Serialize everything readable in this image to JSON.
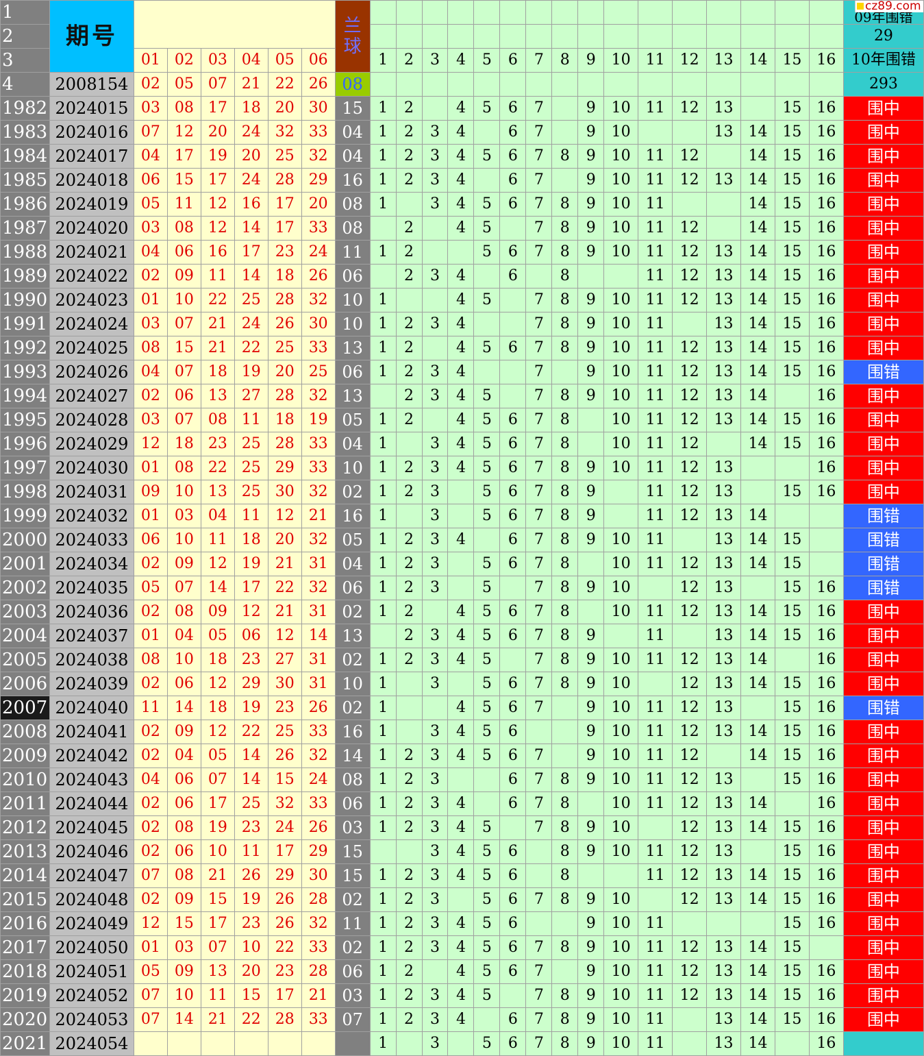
{
  "header": {
    "qihao_label": "期号",
    "lanqiu_label": "兰\n球",
    "header_row_numbers": [
      "1",
      "2",
      "3",
      "4"
    ],
    "red_ball_headers": [
      "01",
      "02",
      "03",
      "04",
      "05",
      "06"
    ],
    "column_numbers": [
      "1",
      "2",
      "3",
      "4",
      "5",
      "6",
      "7",
      "8",
      "9",
      "10",
      "11",
      "12",
      "13",
      "14",
      "15",
      "16"
    ],
    "stat_09_label": "09年围错",
    "stat_09_value": "29",
    "stat_10_label": "10年围错",
    "stat_10_value": "293",
    "sample_issue": "2008154",
    "sample_reds": [
      "02",
      "05",
      "07",
      "21",
      "22",
      "26"
    ],
    "sample_blue": "08"
  },
  "watermark": "cz89.com",
  "colors": {
    "hit": "#ff0000",
    "miss": "#3366ff",
    "grid_green": "#ccffcc",
    "issue_blue": "#00bfff"
  },
  "rows": [
    {
      "rn": "1982",
      "issue": "2024015",
      "reds": [
        "03",
        "08",
        "17",
        "18",
        "20",
        "30"
      ],
      "blue": "15",
      "cells": [
        "1",
        "2",
        "",
        "4",
        "5",
        "6",
        "7",
        "",
        "9",
        "10",
        "11",
        "12",
        "13",
        "",
        "15",
        "16"
      ],
      "result": "围中",
      "hit": true
    },
    {
      "rn": "1983",
      "issue": "2024016",
      "reds": [
        "07",
        "12",
        "20",
        "24",
        "32",
        "33"
      ],
      "blue": "04",
      "cells": [
        "1",
        "2",
        "3",
        "4",
        "",
        "6",
        "7",
        "",
        "9",
        "10",
        "",
        "",
        "13",
        "14",
        "15",
        "16"
      ],
      "result": "围中",
      "hit": true
    },
    {
      "rn": "1984",
      "issue": "2024017",
      "reds": [
        "04",
        "17",
        "19",
        "20",
        "25",
        "32"
      ],
      "blue": "04",
      "cells": [
        "1",
        "2",
        "3",
        "4",
        "5",
        "6",
        "7",
        "8",
        "9",
        "10",
        "11",
        "12",
        "",
        "14",
        "15",
        "16"
      ],
      "result": "围中",
      "hit": true
    },
    {
      "rn": "1985",
      "issue": "2024018",
      "reds": [
        "06",
        "15",
        "17",
        "24",
        "28",
        "29"
      ],
      "blue": "16",
      "cells": [
        "1",
        "2",
        "3",
        "4",
        "",
        "6",
        "7",
        "",
        "9",
        "10",
        "11",
        "12",
        "13",
        "14",
        "15",
        "16"
      ],
      "result": "围中",
      "hit": true
    },
    {
      "rn": "1986",
      "issue": "2024019",
      "reds": [
        "05",
        "11",
        "12",
        "16",
        "17",
        "20"
      ],
      "blue": "08",
      "cells": [
        "1",
        "",
        "3",
        "4",
        "5",
        "6",
        "7",
        "8",
        "9",
        "10",
        "11",
        "",
        "",
        "14",
        "15",
        "16"
      ],
      "result": "围中",
      "hit": true
    },
    {
      "rn": "1987",
      "issue": "2024020",
      "reds": [
        "03",
        "08",
        "12",
        "14",
        "17",
        "33"
      ],
      "blue": "08",
      "cells": [
        "",
        "2",
        "",
        "4",
        "5",
        "",
        "7",
        "8",
        "9",
        "10",
        "11",
        "12",
        "",
        "14",
        "15",
        "16"
      ],
      "result": "围中",
      "hit": true
    },
    {
      "rn": "1988",
      "issue": "2024021",
      "reds": [
        "04",
        "06",
        "16",
        "17",
        "23",
        "24"
      ],
      "blue": "11",
      "cells": [
        "1",
        "2",
        "",
        "",
        "5",
        "6",
        "7",
        "8",
        "9",
        "10",
        "11",
        "12",
        "13",
        "14",
        "15",
        "16"
      ],
      "result": "围中",
      "hit": true
    },
    {
      "rn": "1989",
      "issue": "2024022",
      "reds": [
        "02",
        "09",
        "11",
        "14",
        "18",
        "26"
      ],
      "blue": "06",
      "cells": [
        "",
        "2",
        "3",
        "4",
        "",
        "6",
        "",
        "8",
        "",
        "",
        "11",
        "12",
        "13",
        "14",
        "15",
        "16"
      ],
      "result": "围中",
      "hit": true
    },
    {
      "rn": "1990",
      "issue": "2024023",
      "reds": [
        "01",
        "10",
        "22",
        "25",
        "28",
        "32"
      ],
      "blue": "10",
      "cells": [
        "1",
        "",
        "",
        "4",
        "5",
        "",
        "7",
        "8",
        "9",
        "10",
        "11",
        "12",
        "13",
        "14",
        "15",
        "16"
      ],
      "result": "围中",
      "hit": true
    },
    {
      "rn": "1991",
      "issue": "2024024",
      "reds": [
        "03",
        "07",
        "21",
        "24",
        "26",
        "30"
      ],
      "blue": "10",
      "cells": [
        "1",
        "2",
        "3",
        "4",
        "",
        "",
        "7",
        "8",
        "9",
        "10",
        "11",
        "",
        "13",
        "14",
        "15",
        "16"
      ],
      "result": "围中",
      "hit": true
    },
    {
      "rn": "1992",
      "issue": "2024025",
      "reds": [
        "08",
        "15",
        "21",
        "22",
        "25",
        "33"
      ],
      "blue": "13",
      "cells": [
        "1",
        "2",
        "",
        "4",
        "5",
        "6",
        "7",
        "8",
        "9",
        "10",
        "11",
        "12",
        "13",
        "14",
        "15",
        "16"
      ],
      "result": "围中",
      "hit": true
    },
    {
      "rn": "1993",
      "issue": "2024026",
      "reds": [
        "04",
        "07",
        "18",
        "19",
        "20",
        "25"
      ],
      "blue": "06",
      "cells": [
        "1",
        "2",
        "3",
        "4",
        "",
        "",
        "7",
        "",
        "9",
        "10",
        "11",
        "12",
        "13",
        "14",
        "15",
        "16"
      ],
      "result": "围错",
      "hit": false
    },
    {
      "rn": "1994",
      "issue": "2024027",
      "reds": [
        "02",
        "06",
        "13",
        "27",
        "28",
        "32"
      ],
      "blue": "13",
      "cells": [
        "",
        "2",
        "3",
        "4",
        "5",
        "",
        "7",
        "8",
        "9",
        "10",
        "11",
        "12",
        "13",
        "14",
        "",
        "16"
      ],
      "result": "围中",
      "hit": true
    },
    {
      "rn": "1995",
      "issue": "2024028",
      "reds": [
        "03",
        "07",
        "08",
        "11",
        "18",
        "19"
      ],
      "blue": "05",
      "cells": [
        "1",
        "2",
        "",
        "4",
        "5",
        "6",
        "7",
        "8",
        "",
        "10",
        "11",
        "12",
        "13",
        "14",
        "15",
        "16"
      ],
      "result": "围中",
      "hit": true
    },
    {
      "rn": "1996",
      "issue": "2024029",
      "reds": [
        "12",
        "18",
        "23",
        "25",
        "28",
        "33"
      ],
      "blue": "04",
      "cells": [
        "1",
        "",
        "3",
        "4",
        "5",
        "6",
        "7",
        "8",
        "",
        "10",
        "11",
        "12",
        "",
        "14",
        "15",
        "16"
      ],
      "result": "围中",
      "hit": true
    },
    {
      "rn": "1997",
      "issue": "2024030",
      "reds": [
        "01",
        "08",
        "22",
        "25",
        "29",
        "33"
      ],
      "blue": "10",
      "cells": [
        "1",
        "2",
        "3",
        "4",
        "5",
        "6",
        "7",
        "8",
        "9",
        "10",
        "11",
        "12",
        "13",
        "",
        "",
        "16"
      ],
      "result": "围中",
      "hit": true
    },
    {
      "rn": "1998",
      "issue": "2024031",
      "reds": [
        "09",
        "10",
        "13",
        "25",
        "30",
        "32"
      ],
      "blue": "02",
      "cells": [
        "1",
        "2",
        "3",
        "",
        "5",
        "6",
        "7",
        "8",
        "9",
        "",
        "11",
        "12",
        "13",
        "",
        "15",
        "16"
      ],
      "result": "围中",
      "hit": true
    },
    {
      "rn": "1999",
      "issue": "2024032",
      "reds": [
        "01",
        "03",
        "04",
        "11",
        "12",
        "21"
      ],
      "blue": "16",
      "cells": [
        "1",
        "",
        "3",
        "",
        "5",
        "6",
        "7",
        "8",
        "9",
        "",
        "11",
        "12",
        "13",
        "14",
        "",
        ""
      ],
      "result": "围错",
      "hit": false
    },
    {
      "rn": "2000",
      "issue": "2024033",
      "reds": [
        "06",
        "10",
        "11",
        "18",
        "20",
        "32"
      ],
      "blue": "05",
      "cells": [
        "1",
        "2",
        "3",
        "4",
        "",
        "6",
        "7",
        "8",
        "9",
        "10",
        "11",
        "",
        "13",
        "14",
        "15",
        ""
      ],
      "result": "围错",
      "hit": false
    },
    {
      "rn": "2001",
      "issue": "2024034",
      "reds": [
        "02",
        "09",
        "12",
        "19",
        "21",
        "31"
      ],
      "blue": "04",
      "cells": [
        "1",
        "2",
        "3",
        "",
        "5",
        "6",
        "7",
        "8",
        "",
        "10",
        "11",
        "12",
        "13",
        "14",
        "15",
        ""
      ],
      "result": "围错",
      "hit": false
    },
    {
      "rn": "2002",
      "issue": "2024035",
      "reds": [
        "05",
        "07",
        "14",
        "17",
        "22",
        "32"
      ],
      "blue": "06",
      "cells": [
        "1",
        "2",
        "3",
        "",
        "5",
        "",
        "7",
        "8",
        "9",
        "10",
        "",
        "12",
        "13",
        "",
        "15",
        "16"
      ],
      "result": "围错",
      "hit": false
    },
    {
      "rn": "2003",
      "issue": "2024036",
      "reds": [
        "02",
        "08",
        "09",
        "12",
        "21",
        "31"
      ],
      "blue": "02",
      "cells": [
        "1",
        "2",
        "",
        "4",
        "5",
        "6",
        "7",
        "8",
        "",
        "10",
        "11",
        "12",
        "13",
        "14",
        "15",
        "16"
      ],
      "result": "围中",
      "hit": true
    },
    {
      "rn": "2004",
      "issue": "2024037",
      "reds": [
        "01",
        "04",
        "05",
        "06",
        "12",
        "14"
      ],
      "blue": "13",
      "cells": [
        "",
        "2",
        "3",
        "4",
        "5",
        "6",
        "7",
        "8",
        "9",
        "",
        "11",
        "",
        "13",
        "14",
        "15",
        "16"
      ],
      "result": "围中",
      "hit": true
    },
    {
      "rn": "2005",
      "issue": "2024038",
      "reds": [
        "08",
        "10",
        "18",
        "23",
        "27",
        "31"
      ],
      "blue": "02",
      "cells": [
        "1",
        "2",
        "3",
        "4",
        "5",
        "",
        "7",
        "8",
        "9",
        "10",
        "11",
        "12",
        "13",
        "14",
        "",
        "16"
      ],
      "result": "围中",
      "hit": true
    },
    {
      "rn": "2006",
      "issue": "2024039",
      "reds": [
        "02",
        "06",
        "12",
        "29",
        "30",
        "31"
      ],
      "blue": "10",
      "cells": [
        "1",
        "",
        "3",
        "",
        "5",
        "6",
        "7",
        "8",
        "9",
        "10",
        "",
        "12",
        "13",
        "14",
        "15",
        "16"
      ],
      "result": "围中",
      "hit": true
    },
    {
      "rn": "2007",
      "issue": "2024040",
      "reds": [
        "11",
        "14",
        "18",
        "19",
        "23",
        "26"
      ],
      "blue": "02",
      "cells": [
        "1",
        "",
        "",
        "4",
        "5",
        "6",
        "7",
        "",
        "9",
        "10",
        "11",
        "12",
        "13",
        "",
        "15",
        "16"
      ],
      "result": "围错",
      "hit": false,
      "selected": true
    },
    {
      "rn": "2008",
      "issue": "2024041",
      "reds": [
        "02",
        "09",
        "12",
        "22",
        "25",
        "33"
      ],
      "blue": "16",
      "cells": [
        "1",
        "",
        "3",
        "4",
        "5",
        "6",
        "",
        "",
        "9",
        "10",
        "11",
        "12",
        "13",
        "14",
        "15",
        "16"
      ],
      "result": "围中",
      "hit": true
    },
    {
      "rn": "2009",
      "issue": "2024042",
      "reds": [
        "02",
        "04",
        "05",
        "14",
        "26",
        "32"
      ],
      "blue": "14",
      "cells": [
        "1",
        "2",
        "3",
        "4",
        "5",
        "6",
        "7",
        "",
        "9",
        "10",
        "11",
        "12",
        "",
        "14",
        "15",
        "16"
      ],
      "result": "围中",
      "hit": true
    },
    {
      "rn": "2010",
      "issue": "2024043",
      "reds": [
        "04",
        "06",
        "07",
        "14",
        "15",
        "24"
      ],
      "blue": "08",
      "cells": [
        "1",
        "2",
        "3",
        "",
        "",
        "6",
        "7",
        "8",
        "9",
        "10",
        "11",
        "12",
        "13",
        "",
        "15",
        "16"
      ],
      "result": "围中",
      "hit": true
    },
    {
      "rn": "2011",
      "issue": "2024044",
      "reds": [
        "02",
        "06",
        "17",
        "25",
        "32",
        "33"
      ],
      "blue": "06",
      "cells": [
        "1",
        "2",
        "3",
        "4",
        "",
        "6",
        "7",
        "8",
        "",
        "10",
        "11",
        "12",
        "13",
        "14",
        "",
        "16"
      ],
      "result": "围中",
      "hit": true
    },
    {
      "rn": "2012",
      "issue": "2024045",
      "reds": [
        "02",
        "08",
        "19",
        "23",
        "24",
        "26"
      ],
      "blue": "03",
      "cells": [
        "1",
        "2",
        "3",
        "4",
        "5",
        "",
        "7",
        "8",
        "9",
        "10",
        "",
        "12",
        "13",
        "14",
        "15",
        "16"
      ],
      "result": "围中",
      "hit": true
    },
    {
      "rn": "2013",
      "issue": "2024046",
      "reds": [
        "02",
        "06",
        "10",
        "11",
        "17",
        "29"
      ],
      "blue": "15",
      "cells": [
        "",
        "",
        "3",
        "4",
        "5",
        "6",
        "",
        "8",
        "9",
        "10",
        "11",
        "12",
        "13",
        "",
        "15",
        "16"
      ],
      "result": "围中",
      "hit": true
    },
    {
      "rn": "2014",
      "issue": "2024047",
      "reds": [
        "07",
        "08",
        "21",
        "26",
        "29",
        "30"
      ],
      "blue": "15",
      "cells": [
        "1",
        "2",
        "3",
        "4",
        "5",
        "6",
        "",
        "8",
        "",
        "",
        "11",
        "12",
        "13",
        "14",
        "15",
        "16"
      ],
      "result": "围中",
      "hit": true
    },
    {
      "rn": "2015",
      "issue": "2024048",
      "reds": [
        "02",
        "09",
        "15",
        "19",
        "26",
        "28"
      ],
      "blue": "02",
      "cells": [
        "1",
        "2",
        "3",
        "",
        "5",
        "6",
        "7",
        "8",
        "9",
        "10",
        "",
        "12",
        "13",
        "14",
        "15",
        "16"
      ],
      "result": "围中",
      "hit": true
    },
    {
      "rn": "2016",
      "issue": "2024049",
      "reds": [
        "12",
        "15",
        "17",
        "23",
        "26",
        "32"
      ],
      "blue": "11",
      "cells": [
        "1",
        "2",
        "3",
        "4",
        "5",
        "6",
        "",
        "",
        "9",
        "10",
        "11",
        "",
        "",
        "",
        "15",
        "16"
      ],
      "result": "围中",
      "hit": true
    },
    {
      "rn": "2017",
      "issue": "2024050",
      "reds": [
        "01",
        "03",
        "07",
        "10",
        "22",
        "33"
      ],
      "blue": "02",
      "cells": [
        "1",
        "2",
        "3",
        "4",
        "5",
        "6",
        "7",
        "8",
        "9",
        "10",
        "11",
        "12",
        "13",
        "14",
        "15",
        ""
      ],
      "result": "围中",
      "hit": true
    },
    {
      "rn": "2018",
      "issue": "2024051",
      "reds": [
        "05",
        "09",
        "13",
        "20",
        "23",
        "28"
      ],
      "blue": "06",
      "cells": [
        "1",
        "2",
        "",
        "4",
        "5",
        "6",
        "7",
        "",
        "9",
        "10",
        "11",
        "12",
        "13",
        "14",
        "15",
        "16"
      ],
      "result": "围中",
      "hit": true
    },
    {
      "rn": "2019",
      "issue": "2024052",
      "reds": [
        "07",
        "10",
        "11",
        "15",
        "17",
        "21"
      ],
      "blue": "03",
      "cells": [
        "1",
        "2",
        "3",
        "4",
        "5",
        "",
        "7",
        "8",
        "9",
        "10",
        "11",
        "12",
        "13",
        "14",
        "15",
        "16"
      ],
      "result": "围中",
      "hit": true
    },
    {
      "rn": "2020",
      "issue": "2024053",
      "reds": [
        "07",
        "14",
        "21",
        "22",
        "28",
        "33"
      ],
      "blue": "07",
      "cells": [
        "1",
        "2",
        "3",
        "4",
        "",
        "6",
        "7",
        "8",
        "9",
        "10",
        "11",
        "",
        "13",
        "14",
        "15",
        "16"
      ],
      "result": "围中",
      "hit": true
    },
    {
      "rn": "2021",
      "issue": "2024054",
      "reds": [
        "",
        "",
        "",
        "",
        "",
        ""
      ],
      "blue": "",
      "cells": [
        "1",
        "",
        "3",
        "",
        "5",
        "6",
        "7",
        "8",
        "9",
        "10",
        "11",
        "",
        "13",
        "14",
        "",
        "16"
      ],
      "result": "",
      "hit": null
    }
  ]
}
